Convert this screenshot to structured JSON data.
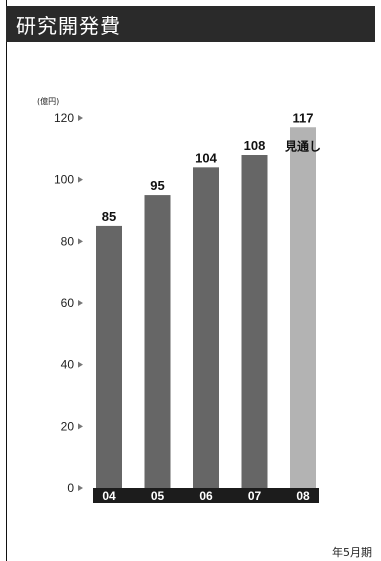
{
  "title": "研究開発費",
  "footer": "年5月期",
  "chart_data": {
    "type": "bar",
    "unit_label": "(億円)",
    "categories": [
      "04",
      "05",
      "06",
      "07",
      "08"
    ],
    "values": [
      85,
      95,
      104,
      108,
      117
    ],
    "value_labels": [
      "85",
      "95",
      "104",
      "108",
      "117"
    ],
    "forecast_note": "見通し",
    "forecast_index": 4,
    "ylim": [
      0,
      120
    ],
    "yticks": [
      0,
      20,
      40,
      60,
      80,
      100,
      120
    ],
    "colors": {
      "actual": "#666666",
      "forecast": "#b3b3b3",
      "axis_band": "#1c1c1c"
    }
  }
}
